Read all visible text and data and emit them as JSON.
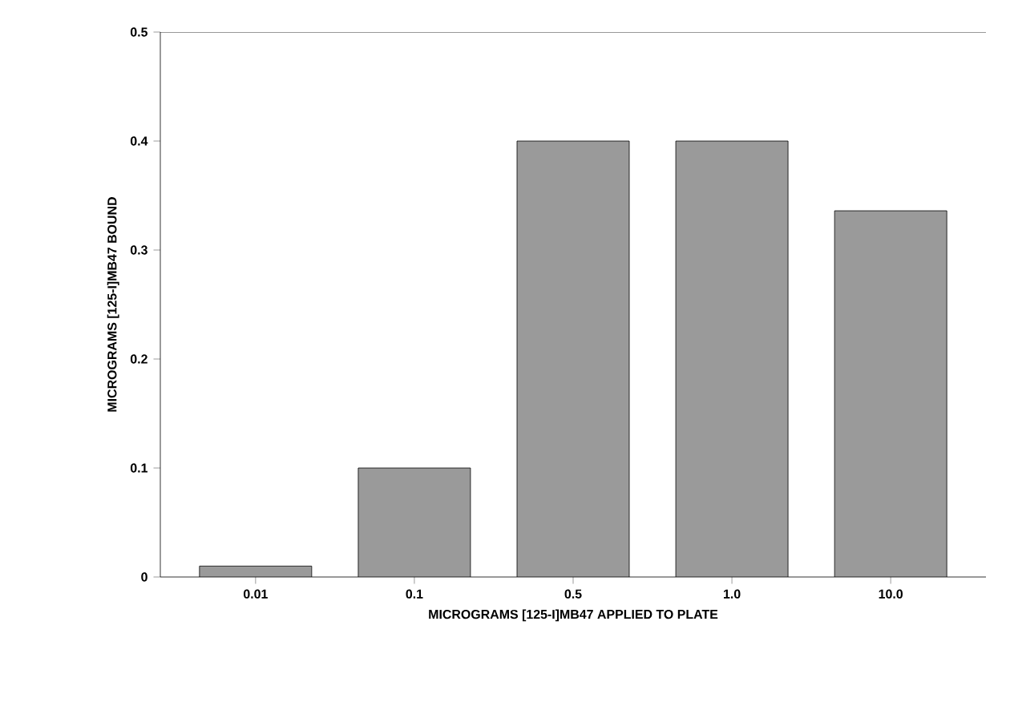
{
  "chart_data": {
    "type": "bar",
    "xlabel": "MICROGRAMS [125-I]MB47 APPLIED TO PLATE",
    "ylabel": "MICROGRAMS [125-I]MB47  BOUND",
    "categories": [
      "0.01",
      "0.1",
      "0.5",
      "1.0",
      "10.0"
    ],
    "values": [
      0.01,
      0.1,
      0.4,
      0.4,
      0.336
    ],
    "color": "#9a9a9a",
    "ylim": [
      0,
      0.5
    ],
    "yticks": [
      {
        "value": 0,
        "label": "0"
      },
      0.1,
      0.2,
      0.3,
      0.4,
      0.5
    ]
  }
}
